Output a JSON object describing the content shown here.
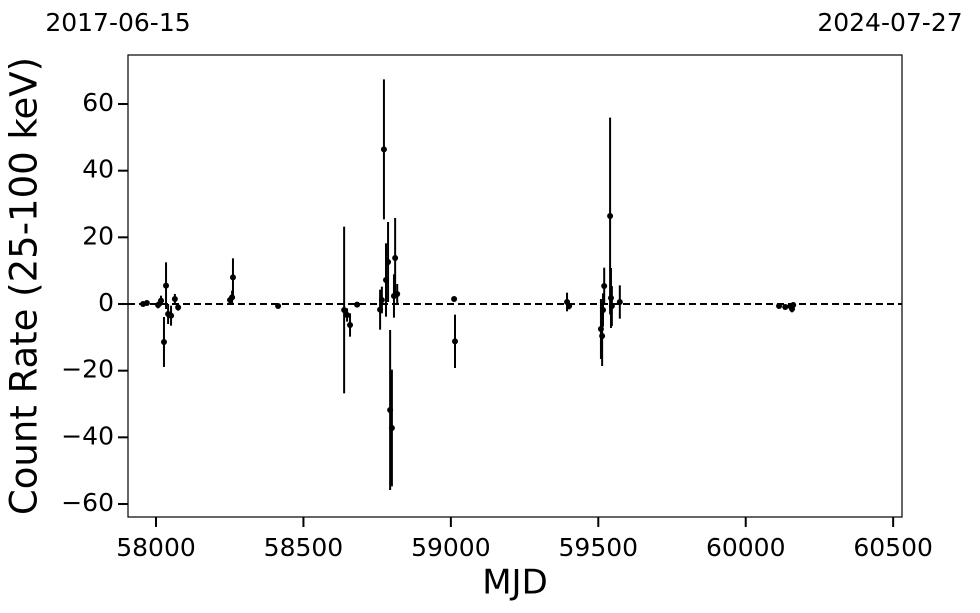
{
  "chart_data": {
    "type": "errorbar",
    "xlabel": "MJD",
    "ylabel": "Count Rate (25-100 keV)",
    "top_labels": [
      "2017-06-15",
      "2024-07-27"
    ],
    "xlim": [
      57905,
      60530
    ],
    "ylim": [
      -63.9,
      74.7
    ],
    "xticks": [
      58000,
      58500,
      59000,
      59500,
      60000,
      60500
    ],
    "yticks": [
      {
        "value": -60,
        "label": "−60"
      },
      {
        "value": -40,
        "label": "−40"
      },
      {
        "value": -20,
        "label": "−20"
      },
      0,
      20,
      40,
      60
    ],
    "hline": 0,
    "color": "#000000",
    "x": [
      57956,
      57969,
      58007,
      58017,
      58027,
      58034,
      58041,
      58051,
      58064,
      58075,
      58251,
      58258,
      58261,
      58414,
      58638,
      58648,
      58658,
      58682,
      58760,
      58766,
      58773,
      58780,
      58787,
      58794,
      58800,
      58807,
      58811,
      58818,
      59011,
      59014,
      59394,
      59401,
      59509,
      59513,
      59516,
      59520,
      59540,
      59543,
      59546,
      59573,
      60113,
      60134,
      60151,
      60157,
      60161
    ],
    "values": [
      0,
      0.3,
      -0.3,
      1,
      -11.4,
      5.5,
      -3,
      -3.5,
      1.5,
      -1,
      1.2,
      2,
      8,
      -0.6,
      -1.8,
      -3.3,
      -6.3,
      -0.2,
      -1.7,
      1.2,
      46.4,
      7.2,
      12.6,
      -31.8,
      -37.2,
      2.4,
      13.8,
      3,
      1.5,
      -11.2,
      0.6,
      -0.6,
      -7.5,
      -9.6,
      -1.8,
      5.4,
      26.4,
      1.8,
      -0.6,
      0.6,
      -0.6,
      -0.9,
      -0.6,
      -1.5,
      -0.3
    ],
    "errors": [
      0.5,
      0.5,
      1,
      1.5,
      7.5,
      7,
      3,
      3,
      1.5,
      1,
      1,
      2,
      5.7,
      0.5,
      25,
      2,
      3.5,
      0.5,
      6,
      4,
      21,
      11,
      12,
      24,
      17.5,
      6.5,
      12,
      3,
      0.7,
      8,
      2.8,
      1,
      9,
      9,
      5,
      5.5,
      29.5,
      9,
      6,
      5,
      0.5,
      0.5,
      0.5,
      1,
      0.8
    ]
  }
}
